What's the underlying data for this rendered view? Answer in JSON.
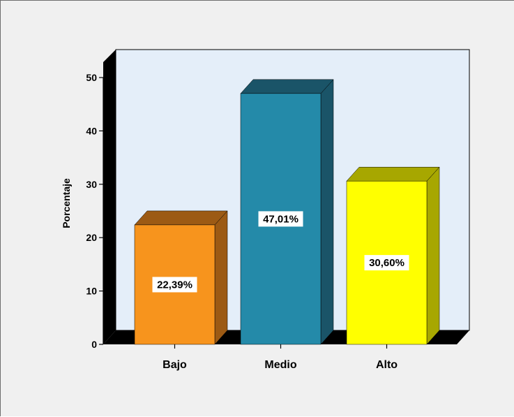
{
  "chart_data": {
    "type": "bar",
    "categories": [
      "Bajo",
      "Medio",
      "Alto"
    ],
    "values": [
      22.39,
      47.01,
      30.6
    ],
    "data_labels": [
      "22,39%",
      "47,01%",
      "30,60%"
    ],
    "colors": [
      "#f7941d",
      "#248aa9",
      "#ffff00"
    ],
    "side_colors": [
      "#9c5a14",
      "#1a5468",
      "#a7a700"
    ],
    "ylabel": "Porcentaje",
    "xlabel": "",
    "ylim": [
      0,
      50
    ],
    "yticks": [
      "0",
      "10",
      "20",
      "30",
      "40",
      "50"
    ],
    "plot_background": "#e4eef9",
    "style": "3d-bar",
    "grid": false,
    "legend": "none"
  }
}
